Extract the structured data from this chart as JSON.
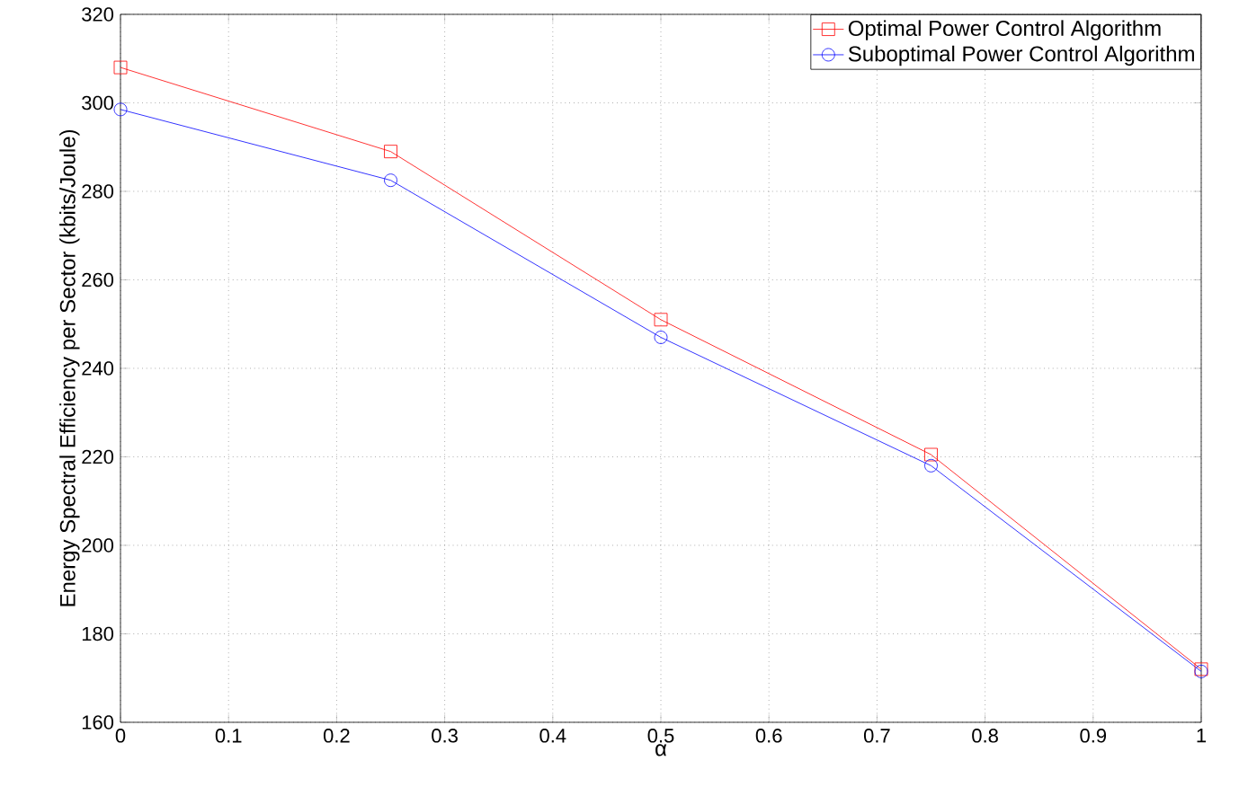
{
  "chart_data": {
    "type": "line",
    "xlabel": "α",
    "ylabel": "Energy Spectral Efficiency per Sector (kbits/Joule)",
    "x": [
      0,
      0.25,
      0.5,
      0.75,
      1
    ],
    "series": [
      {
        "name": "Optimal Power Control Algorithm",
        "color": "#ff0000",
        "marker": "square",
        "values": [
          308,
          289,
          251,
          220.5,
          172
        ]
      },
      {
        "name": "Suboptimal Power Control Algorithm",
        "color": "#0000ff",
        "marker": "circle",
        "values": [
          298.5,
          282.5,
          247,
          218,
          171.5
        ]
      }
    ],
    "xlim": [
      0,
      1
    ],
    "xticks": [
      0,
      0.1,
      0.2,
      0.3,
      0.4,
      0.5,
      0.6,
      0.7,
      0.8,
      0.9,
      1
    ],
    "ylim": [
      160,
      320
    ],
    "yticks": [
      160,
      180,
      200,
      220,
      240,
      260,
      280,
      300,
      320
    ],
    "grid": true,
    "legend": "top right",
    "line_style": "solid"
  }
}
